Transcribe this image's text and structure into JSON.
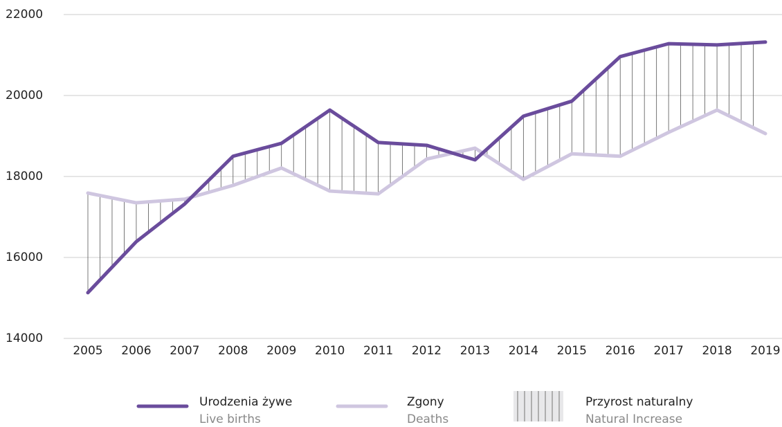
{
  "chart_data": {
    "type": "line",
    "categories": [
      "2005",
      "2006",
      "2007",
      "2008",
      "2009",
      "2010",
      "2011",
      "2012",
      "2013",
      "2014",
      "2015",
      "2016",
      "2017",
      "2018",
      "2019"
    ],
    "series": [
      {
        "name": "Urodzenia żywe",
        "name_en": "Live births",
        "color": "#6a4c9c",
        "values": [
          15130,
          16390,
          17320,
          18500,
          18820,
          19640,
          18840,
          18770,
          18410,
          19490,
          19860,
          20960,
          21280,
          21250,
          21320
        ]
      },
      {
        "name": "Zgony",
        "name_en": "Deaths",
        "color": "#cfc6e0",
        "values": [
          17590,
          17350,
          17440,
          17780,
          18210,
          17640,
          17570,
          18430,
          18700,
          17930,
          18560,
          18500,
          19090,
          19640,
          19060
        ]
      }
    ],
    "area": {
      "name": "Przyrost naturalny",
      "name_en": "Natural Increase"
    },
    "ylim": [
      14000,
      22000
    ],
    "yticks": [
      14000,
      16000,
      18000,
      20000,
      22000
    ],
    "grid": true
  }
}
